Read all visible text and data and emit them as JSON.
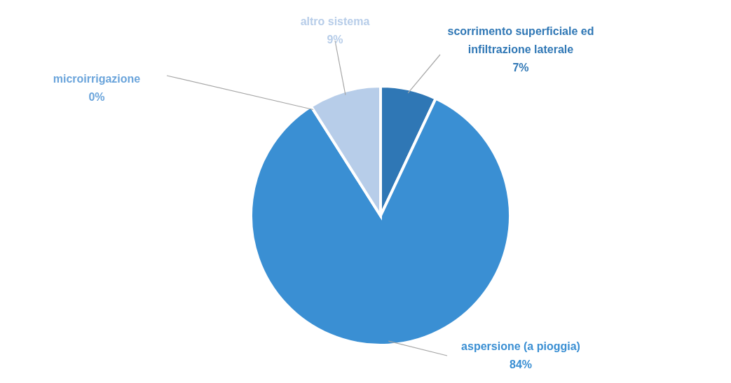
{
  "chart_data": {
    "type": "pie",
    "categories": [
      "scorrimento superficiale ed infiltrazione laterale",
      "aspersione (a pioggia)",
      "microirrigazione",
      "altro sistema"
    ],
    "values": [
      7,
      84,
      0,
      9
    ],
    "value_labels": [
      "7%",
      "84%",
      "0%",
      "9%"
    ],
    "colors": [
      "#2f77b5",
      "#3a8fd3",
      "#6aa4db",
      "#b7cde9"
    ]
  }
}
